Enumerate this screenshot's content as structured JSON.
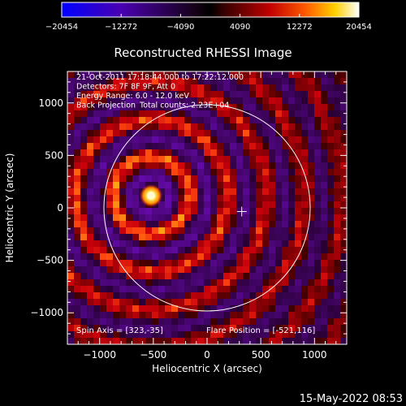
{
  "chart_data": {
    "type": "heatmap",
    "title": "Reconstructed RHESSI Image",
    "xlabel": "Heliocentric X (arcsec)",
    "ylabel": "Heliocentric Y (arcsec)",
    "xlim": [
      -1300,
      1300
    ],
    "ylim": [
      -1300,
      1300
    ],
    "x_ticks": [
      {
        "value": -1000,
        "label": "−1000"
      },
      {
        "value": -500,
        "label": "−500"
      },
      {
        "value": 0,
        "label": "0"
      },
      {
        "value": 500,
        "label": "500"
      },
      {
        "value": 1000,
        "label": "1000"
      }
    ],
    "y_ticks": [
      {
        "value": 1000,
        "label": "1000"
      },
      {
        "value": 500,
        "label": "500"
      },
      {
        "value": 0,
        "label": "0"
      },
      {
        "value": -500,
        "label": "−500"
      },
      {
        "value": -1000,
        "label": "−1000"
      }
    ],
    "colorbar": {
      "min": -20454,
      "max": 20454,
      "ticks": [
        {
          "value": -20454,
          "label": "−20454"
        },
        {
          "value": -12272,
          "label": "−12272"
        },
        {
          "value": -4090,
          "label": "−4090"
        },
        {
          "value": 4090,
          "label": "4090"
        },
        {
          "value": 12272,
          "label": "12272"
        },
        {
          "value": 20454,
          "label": "20454"
        }
      ]
    },
    "annotations": [
      "21-Oct-2011 17:18:44.000 to 17:22:12.000",
      "Detectors: 7F 8F 9F, Att 0",
      "Energy Range: 6.0 - 12.0 keV",
      "Back Projection",
      "Total counts: 2.23E+04"
    ],
    "spin_axis_text": "Spin Axis = [323,-35]",
    "flare_position_text": "Flare Position = [-521,116]",
    "spin_axis": [
      323,
      -35
    ],
    "flare_position": [
      -521,
      116
    ],
    "limb_circle": {
      "center": [
        0,
        0
      ],
      "radius": 960
    },
    "timestamp": "15-May-2022 08:53"
  },
  "colors": {
    "background": "#000000",
    "foreground": "#ffffff",
    "negative_max": "#1f1fff",
    "positive_max": "#ffffff",
    "positive_mid": "#ff2400",
    "positive_high": "#ffd400"
  }
}
